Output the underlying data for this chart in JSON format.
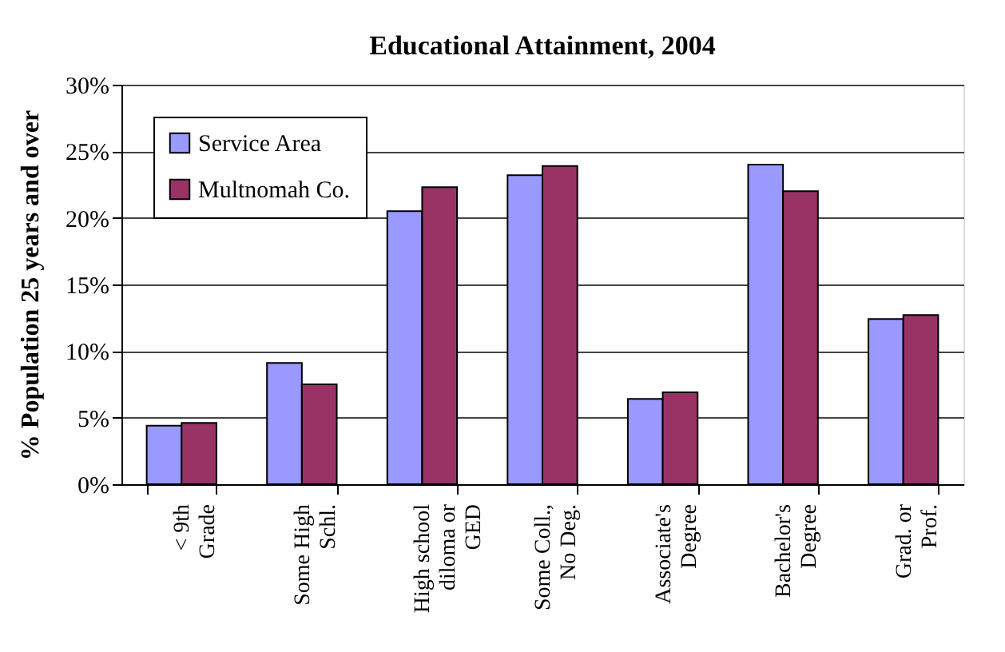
{
  "chart_data": {
    "type": "bar",
    "title": "Educational Attainment, 2004",
    "ylabel": "% Population 25 years and over",
    "categories": [
      "< 9th\nGrade",
      "Some High\nSchl.",
      "High school\ndiloma or\nGED",
      "Some Coll.,\nNo Deg.",
      "Associate's\nDegree",
      "Bachelor's\nDegree",
      "Grad. or\nProf."
    ],
    "series": [
      {
        "name": "Service Area",
        "color": "#9999ff",
        "values": [
          4.4,
          9.1,
          20.5,
          23.2,
          6.4,
          24.0,
          12.4
        ]
      },
      {
        "name": "Multnomah Co.",
        "color": "#993366",
        "values": [
          4.6,
          7.5,
          22.3,
          23.9,
          6.9,
          22.0,
          12.7
        ]
      }
    ],
    "ylim": [
      0,
      30
    ],
    "yticks": [
      {
        "value": 0,
        "label": "0%"
      },
      {
        "value": 5,
        "label": "5%"
      },
      {
        "value": 10,
        "label": "10%"
      },
      {
        "value": 15,
        "label": "15%"
      },
      {
        "value": 20,
        "label": "20%"
      },
      {
        "value": 25,
        "label": "25%"
      },
      {
        "value": 30,
        "label": "30%"
      }
    ],
    "grid": "y",
    "legend": "top left"
  }
}
